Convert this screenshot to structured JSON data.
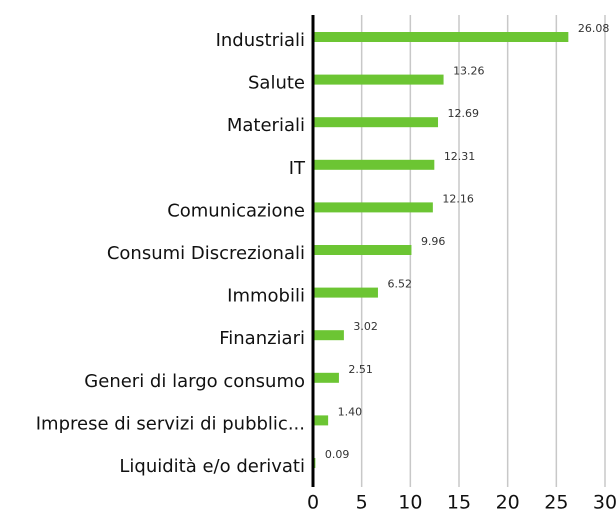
{
  "chart_data": {
    "type": "barh",
    "categories": [
      "Industriali",
      "Salute",
      "Materiali",
      "IT",
      "Comunicazione",
      "Consumi Discrezionali",
      "Immobili",
      "Finanziari",
      "Generi di largo consumo",
      "Imprese di servizi di pubblic...",
      "Liquidità e/o derivati"
    ],
    "values": [
      26.08,
      13.26,
      12.69,
      12.31,
      12.16,
      9.96,
      6.52,
      3.02,
      2.51,
      1.4,
      0.09
    ],
    "value_labels": [
      "26.08",
      "13.26",
      "12.69",
      "12.31",
      "12.16",
      "9.96",
      "6.52",
      "3.02",
      "2.51",
      "1.40",
      "0.09"
    ],
    "color": "#6cc533",
    "xlim": [
      0,
      30
    ],
    "xticks": [
      0,
      5,
      10,
      15,
      20,
      25,
      30
    ],
    "grid": true
  }
}
